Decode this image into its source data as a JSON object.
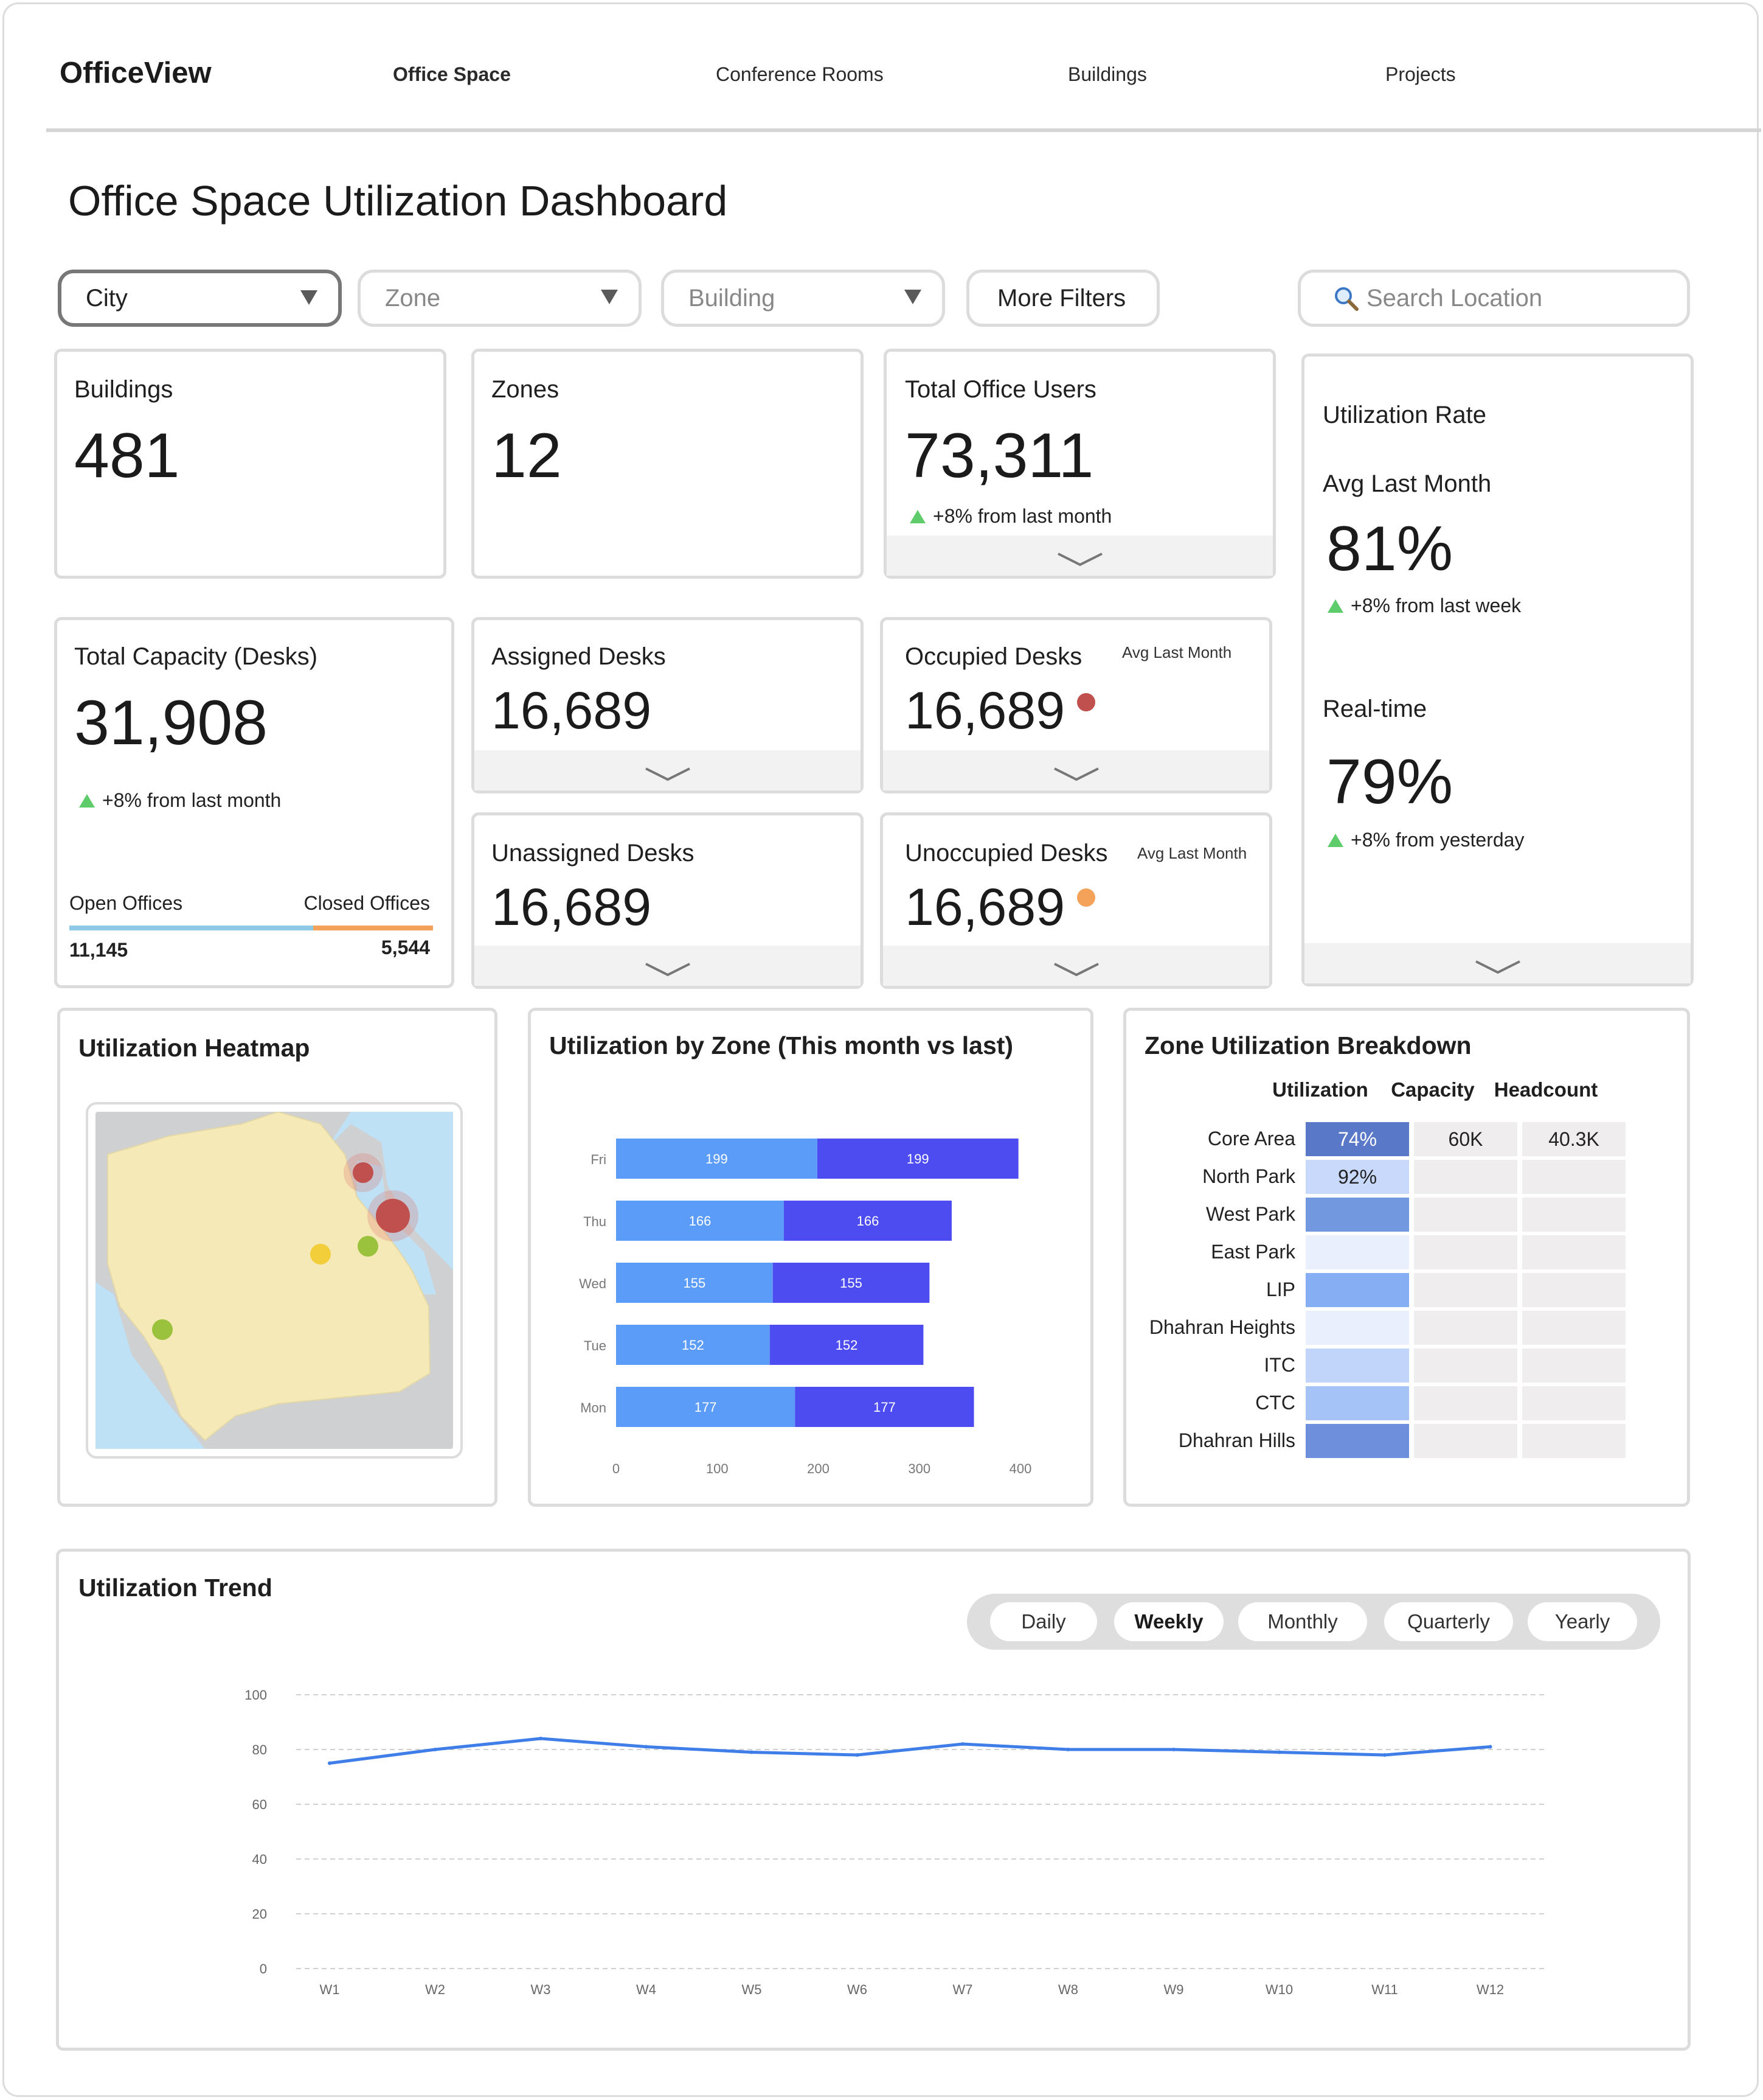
{
  "app": {
    "brand": "OfficeView"
  },
  "nav": {
    "items": [
      {
        "label": "Office Space"
      },
      {
        "label": "Conference Rooms"
      },
      {
        "label": "Buildings"
      },
      {
        "label": "Projects"
      }
    ]
  },
  "page": {
    "title": "Office Space Utilization Dashboard"
  },
  "filters": {
    "city": "City",
    "zone": "Zone",
    "building": "Building",
    "more": "More Filters",
    "search_placeholder": "Search Location"
  },
  "kpi": {
    "buildings": {
      "label": "Buildings",
      "value": "481"
    },
    "zones": {
      "label": "Zones",
      "value": "12"
    },
    "users": {
      "label": "Total Office Users",
      "value": "73,311",
      "trend": "+8% from last month"
    },
    "utilization": {
      "title": "Utilization Rate",
      "avg_label": "Avg Last Month",
      "avg_value": "81%",
      "avg_trend": "+8% from last week",
      "rt_label": "Real-time",
      "rt_value": "79%",
      "rt_trend": "+8% from yesterday"
    },
    "capacity": {
      "label": "Total Capacity (Desks)",
      "value": "31,908",
      "trend": "+8% from last month",
      "open_label": "Open Offices",
      "closed_label": "Closed Offices",
      "open_value": "11,145",
      "closed_value": "5,544",
      "open_fraction": 0.67,
      "open_color": "#8ecae6",
      "closed_color": "#f4a259"
    },
    "assigned": {
      "label": "Assigned Desks",
      "value": "16,689"
    },
    "unassigned": {
      "label": "Unassigned Desks",
      "value": "16,689"
    },
    "occupied": {
      "label": "Occupied Desks",
      "note": "Avg Last Month",
      "value": "16,689",
      "status_color": "#c0504d"
    },
    "unoccupied": {
      "label": "Unoccupied Desks",
      "note": "Avg Last Month",
      "value": "16,689",
      "status_color": "#f4a259"
    }
  },
  "heatmap": {
    "title": "Utilization Heatmap",
    "markers": [
      {
        "color": "#c0504d",
        "level": "high"
      },
      {
        "color": "#c0504d",
        "level": "high"
      },
      {
        "color": "#9bc23c",
        "level": "medium"
      },
      {
        "color": "#f2cf3a",
        "level": "medium"
      },
      {
        "color": "#9bc23c",
        "level": "medium"
      }
    ]
  },
  "zone_chart": {
    "title": "Utilization by Zone (This month vs last)"
  },
  "chart_data": [
    {
      "type": "bar",
      "orientation": "horizontal",
      "stacked": true,
      "title": "Utilization by Zone (This month vs last)",
      "categories": [
        "Fri",
        "Thu",
        "Wed",
        "Tue",
        "Mon"
      ],
      "series": [
        {
          "values": [
            199,
            166,
            155,
            152,
            177
          ],
          "color": "#5b9cf8"
        },
        {
          "values": [
            199,
            166,
            155,
            152,
            177
          ],
          "color": "#4c4cf0"
        }
      ],
      "xticks": [
        "0",
        "100",
        "200",
        "300",
        "400"
      ],
      "xlim": [
        0,
        400
      ],
      "grid": false
    },
    {
      "type": "line",
      "title": "Utilization Trend",
      "x": [
        "W1",
        "W2",
        "W3",
        "W4",
        "W5",
        "W6",
        "W7",
        "W8",
        "W9",
        "W10",
        "W11",
        "W12"
      ],
      "series": [
        {
          "values": [
            75,
            80,
            84,
            81,
            79,
            78,
            82,
            80,
            80,
            79,
            78,
            81
          ],
          "color": "#3f7ee8"
        }
      ],
      "yticks": [
        "0",
        "20",
        "40",
        "60",
        "80",
        "100"
      ],
      "ylim": [
        0,
        100
      ],
      "grid": true
    }
  ],
  "breakdown": {
    "title": "Zone Utilization Breakdown",
    "headers": [
      "Utilization",
      "Capacity",
      "Headcount"
    ],
    "rows": [
      {
        "zone": "Core Area",
        "util": "74%",
        "capacity": "60K",
        "headcount": "40.3K",
        "color": "#5a78c8",
        "text_color": "#ffffff"
      },
      {
        "zone": "North Park",
        "util": "92%",
        "capacity": "",
        "headcount": "",
        "color": "#c8d9fb",
        "text_color": "#222222"
      },
      {
        "zone": "West Park",
        "util": "",
        "capacity": "",
        "headcount": "",
        "color": "#7298e0",
        "text_color": "#222222"
      },
      {
        "zone": "East Park",
        "util": "",
        "capacity": "",
        "headcount": "",
        "color": "#e9effd",
        "text_color": "#222222"
      },
      {
        "zone": "LIP",
        "util": "",
        "capacity": "",
        "headcount": "",
        "color": "#86aef3",
        "text_color": "#222222"
      },
      {
        "zone": "Dhahran Heights",
        "util": "",
        "capacity": "",
        "headcount": "",
        "color": "#e9effd",
        "text_color": "#222222"
      },
      {
        "zone": "ITC",
        "util": "",
        "capacity": "",
        "headcount": "",
        "color": "#c1d5fb",
        "text_color": "#222222"
      },
      {
        "zone": "CTC",
        "util": "",
        "capacity": "",
        "headcount": "",
        "color": "#a6c3f8",
        "text_color": "#222222"
      },
      {
        "zone": "Dhahran Hills",
        "util": "",
        "capacity": "",
        "headcount": "",
        "color": "#6e90dc",
        "text_color": "#222222"
      }
    ]
  },
  "trend": {
    "title": "Utilization Trend",
    "periods": [
      "Daily",
      "Weekly",
      "Monthly",
      "Quarterly",
      "Yearly"
    ],
    "selected": "Weekly"
  }
}
